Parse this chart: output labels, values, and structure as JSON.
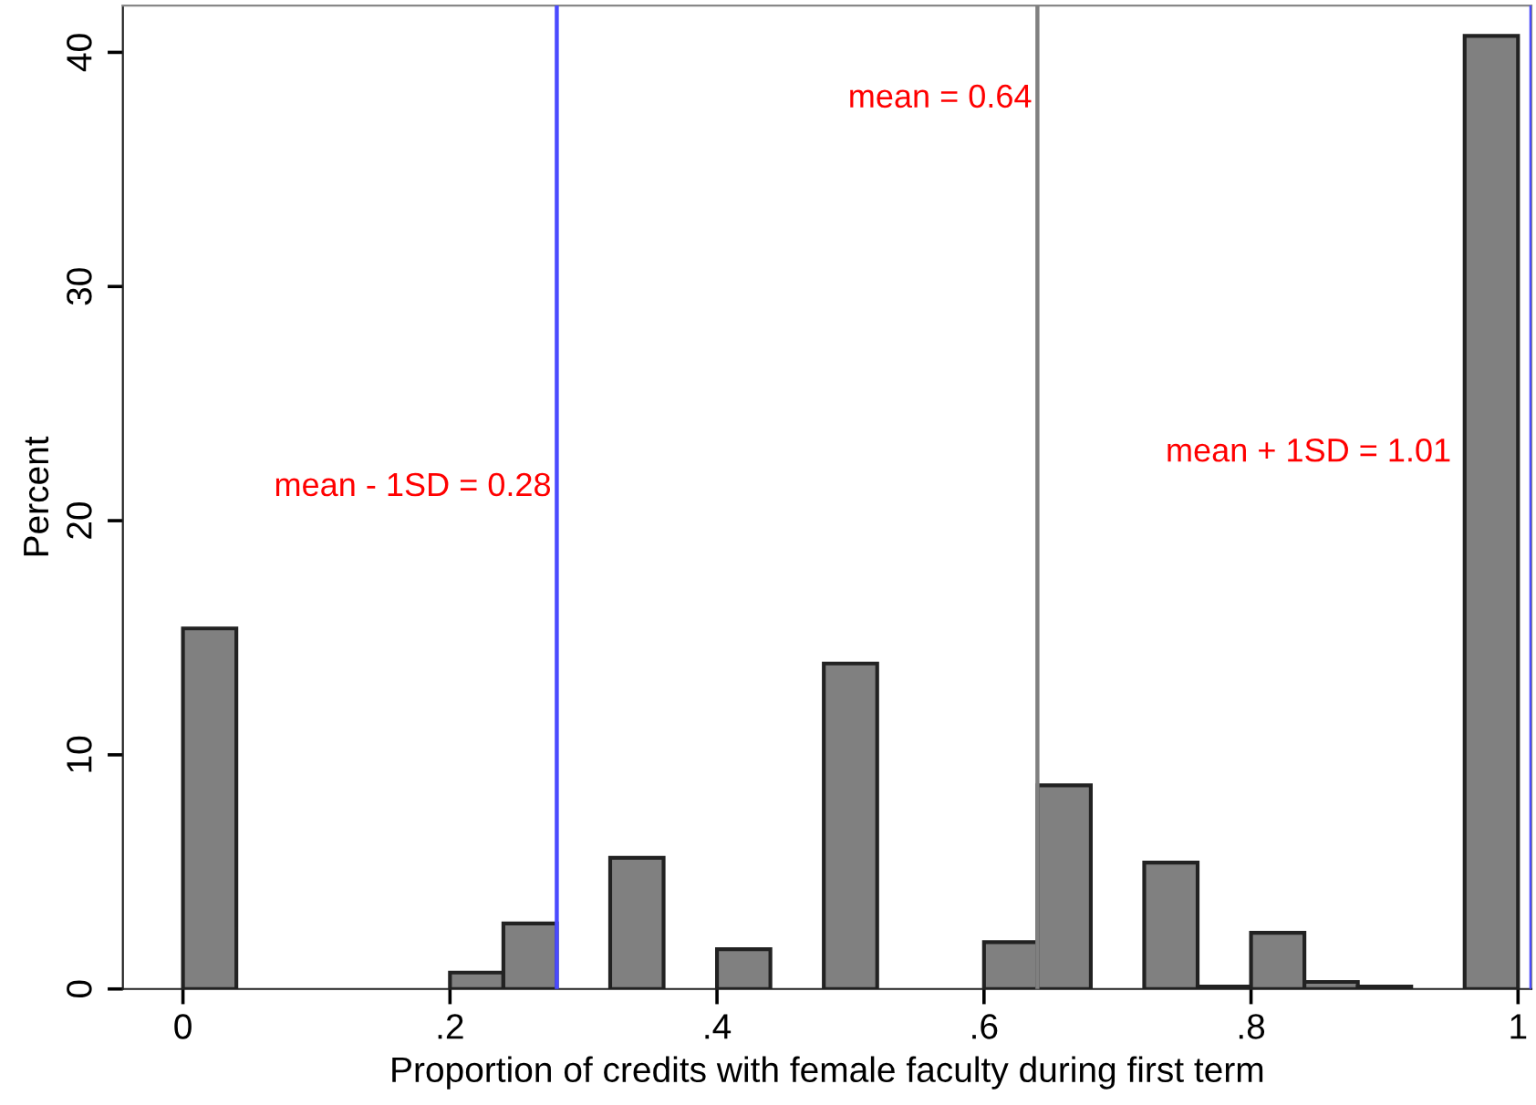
{
  "chart_data": {
    "type": "histogram",
    "xlabel": "Proportion of credits with female faculty during first term",
    "ylabel": "Percent",
    "bins": [
      0,
      0.04,
      0.08,
      0.12,
      0.16,
      0.2,
      0.24,
      0.28,
      0.32,
      0.36,
      0.4,
      0.44,
      0.48,
      0.52,
      0.56,
      0.6,
      0.64,
      0.68,
      0.72,
      0.76,
      0.8,
      0.84,
      0.88,
      0.92,
      0.96,
      1.0
    ],
    "values": [
      15.4,
      0,
      0,
      0,
      0,
      0.7,
      2.8,
      0,
      5.6,
      0,
      1.7,
      0,
      13.9,
      0,
      0,
      2.0,
      8.7,
      0,
      5.4,
      0.1,
      2.4,
      0.3,
      0.1,
      0,
      40.7
    ],
    "color": "#808080",
    "xlim": [
      -0.045,
      1.01
    ],
    "ylim": [
      0,
      42
    ],
    "xticks": [
      0,
      {
        "value": 0.2,
        "label": ".2"
      },
      {
        "value": 0.4,
        "label": ".4"
      },
      {
        "value": 0.6,
        "label": ".6"
      },
      {
        "value": 0.8,
        "label": ".8"
      },
      1
    ],
    "yticks": [
      0,
      10,
      20,
      30,
      40
    ],
    "grid": false,
    "legend": false,
    "ref_lines": [
      {
        "axis": "x",
        "value": 0.28,
        "label": "mean - 1SD = 0.28",
        "color": "#4a4aff"
      },
      {
        "axis": "x",
        "value": 0.64,
        "label": "mean = 0.64",
        "color": "#808080"
      },
      {
        "axis": "x",
        "value": 1.01,
        "label": "mean + 1SD = 1.01",
        "color": "#4a4aff"
      }
    ]
  }
}
